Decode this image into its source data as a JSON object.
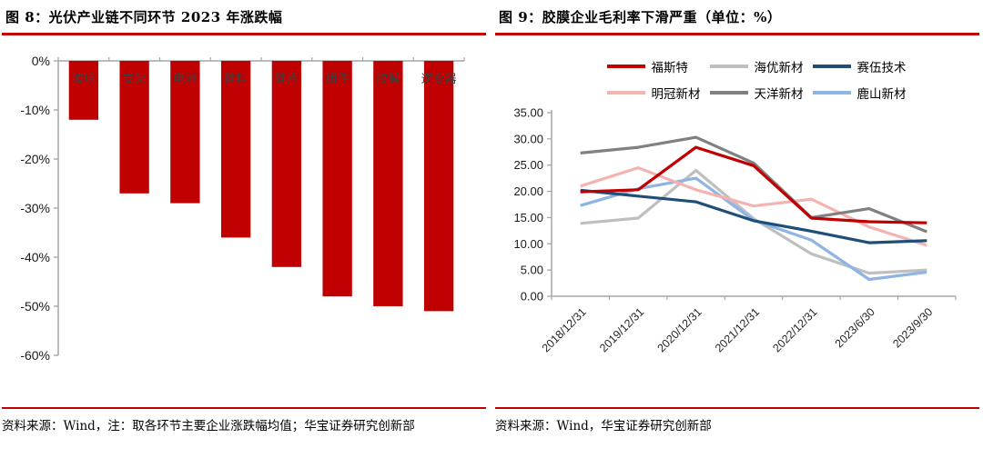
{
  "accent_color": "#c00000",
  "axis_color": "#a6a6a6",
  "left_panel": {
    "title": "图 8：光伏产业链不同环节 2023 年涨跌幅",
    "source_note": "资料来源：Wind，注：取各环节主要企业涨跌幅均值；华宝证券研究创新部"
  },
  "right_panel": {
    "title": "图 9：胶膜企业毛利率下滑严重（单位：%）",
    "source_note": "资料来源：Wind，华宝证券研究创新部"
  },
  "chart_data": [
    {
      "type": "bar",
      "title": "光伏产业链不同环节2023年涨跌幅",
      "categories": [
        "玻璃",
        "支架",
        "电池",
        "硅料",
        "硅片",
        "组件",
        "胶膜",
        "逆变器"
      ],
      "values": [
        -12,
        -27,
        -29,
        -36,
        -42,
        -48,
        -50,
        -51
      ],
      "bar_color": "#c00000",
      "ylim": [
        -60,
        0
      ],
      "ytick_step": 10,
      "ytick_labels": [
        "0%",
        "-10%",
        "-20%",
        "-30%",
        "-40%",
        "-50%",
        "-60%"
      ],
      "grid": false,
      "legend": false
    },
    {
      "type": "line",
      "title": "胶膜企业毛利率（单位：%）",
      "categories": [
        "2018/12/31",
        "2019/12/31",
        "2020/12/31",
        "2021/12/31",
        "2022/12/31",
        "2023/6/30",
        "2023/9/30"
      ],
      "series": [
        {
          "name": "福斯特",
          "color": "#c00000",
          "values": [
            19.9,
            20.3,
            28.4,
            24.9,
            14.9,
            14.2,
            14.0
          ]
        },
        {
          "name": "海优新材",
          "color": "#bfbfbf",
          "values": [
            13.9,
            14.9,
            24.0,
            14.8,
            8.1,
            4.4,
            5.0
          ]
        },
        {
          "name": "赛伍技术",
          "color": "#1f4e79",
          "values": [
            20.2,
            19.1,
            18.0,
            14.4,
            12.4,
            10.2,
            10.6
          ]
        },
        {
          "name": "明冠新材",
          "color": "#f4b3b1",
          "values": [
            21.0,
            24.5,
            20.3,
            17.2,
            18.5,
            13.2,
            9.7
          ]
        },
        {
          "name": "天洋新材",
          "color": "#808080",
          "values": [
            27.3,
            28.4,
            30.3,
            25.4,
            15.0,
            16.7,
            12.3
          ]
        },
        {
          "name": "鹿山新材",
          "color": "#8eb4e3",
          "values": [
            17.3,
            20.5,
            22.5,
            14.5,
            10.7,
            3.2,
            4.6
          ]
        }
      ],
      "ylim": [
        0,
        35
      ],
      "ytick_step": 5,
      "ytick_labels": [
        "35.00",
        "30.00",
        "25.00",
        "20.00",
        "15.00",
        "10.00",
        "5.00",
        "0.00"
      ],
      "legend_position": "top",
      "grid": false
    }
  ]
}
